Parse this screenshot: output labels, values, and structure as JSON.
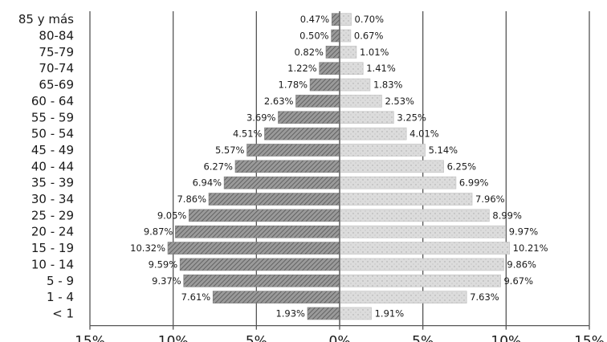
{
  "chart_data": {
    "type": "bar",
    "orientation": "horizontal",
    "subtype": "population-pyramid",
    "title": "",
    "xlabel": "",
    "ylabel": "",
    "categories": [
      "85 y más",
      "80-84",
      "75-79",
      "70-74",
      "65-69",
      "60 - 64",
      "55 - 59",
      "50 - 54",
      "45 - 49",
      "40 - 44",
      "35 - 39",
      "30 - 34",
      "25 - 29",
      "20 - 24",
      "15 - 19",
      "10 - 14",
      "5 - 9",
      "1 - 4",
      "< 1"
    ],
    "series": [
      {
        "side": "left",
        "color": "#8c8c8c",
        "pattern": "diagonal-hatch",
        "values": [
          0.47,
          0.5,
          0.82,
          1.22,
          1.78,
          2.63,
          3.69,
          4.51,
          5.57,
          6.27,
          6.94,
          7.86,
          9.05,
          9.87,
          10.32,
          9.59,
          9.37,
          7.61,
          1.93
        ],
        "value_labels": [
          "0.47%",
          "0.50%",
          "0.82%",
          "1.22%",
          "1.78%",
          "2.63%",
          "3.69%",
          "4.51%",
          "5.57%",
          "6.27%",
          "6.94%",
          "7.86%",
          "9.05%",
          "9.87%",
          "10.32%",
          "9.59%",
          "9.37%",
          "7.61%",
          "1.93%"
        ]
      },
      {
        "side": "right",
        "color": "#d9d9d9",
        "pattern": "dotted",
        "values": [
          0.7,
          0.67,
          1.01,
          1.41,
          1.83,
          2.53,
          3.25,
          4.01,
          5.14,
          6.25,
          6.99,
          7.96,
          8.99,
          9.97,
          10.21,
          9.86,
          9.67,
          7.63,
          1.91
        ],
        "value_labels": [
          "0.70%",
          "0.67%",
          "1.01%",
          "1.41%",
          "1.83%",
          "2.53%",
          "3.25%",
          "4.01%",
          "5.14%",
          "6.25%",
          "6.99%",
          "7.96%",
          "8.99%",
          "9.97%",
          "10.21%",
          "9.86%",
          "9.67%",
          "7.63%",
          "1.91%"
        ]
      }
    ],
    "xlim": [
      -15,
      15
    ],
    "xticks": [
      -15,
      -10,
      -5,
      0,
      5,
      10,
      15
    ],
    "xtick_labels": [
      "15%",
      "10%",
      "5%",
      "0%",
      "5%",
      "10%",
      "15%"
    ],
    "grid": "vertical",
    "legend": "none"
  }
}
